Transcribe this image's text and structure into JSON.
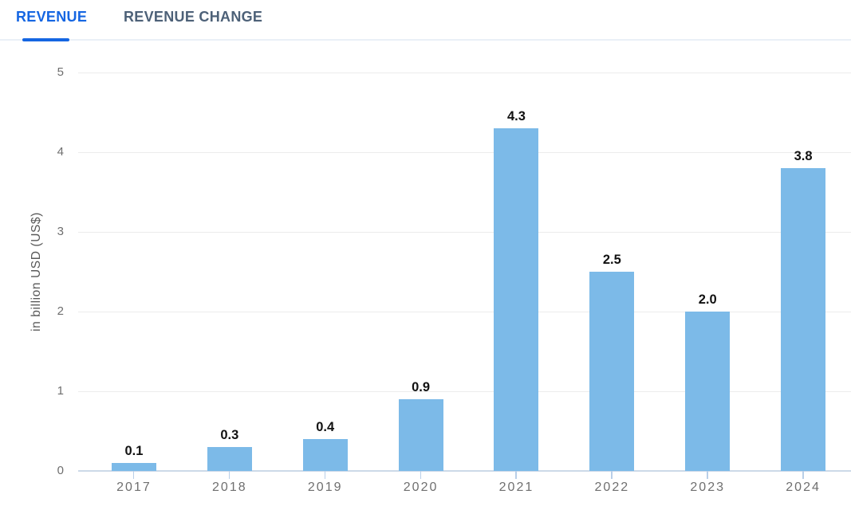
{
  "tabs": [
    {
      "label": "REVENUE",
      "active": true
    },
    {
      "label": "REVENUE CHANGE",
      "active": false
    }
  ],
  "colors": {
    "active_tab": "#1566e2",
    "inactive_tab": "#4d6178",
    "bar": "#7cbae8",
    "gridline": "#ececec",
    "baseline": "#ccd9e8",
    "xtick": "#b9cfe8",
    "axis_text": "#6e6e6e",
    "value_label": "#111111"
  },
  "chart_data": {
    "type": "bar",
    "categories": [
      "2017",
      "2018",
      "2019",
      "2020",
      "2021",
      "2022",
      "2023",
      "2024"
    ],
    "values": [
      0.1,
      0.3,
      0.4,
      0.9,
      4.3,
      2.5,
      2.0,
      3.8
    ],
    "value_labels": [
      "0.1",
      "0.3",
      "0.4",
      "0.9",
      "4.3",
      "2.5",
      "2.0",
      "3.8"
    ],
    "title": "",
    "xlabel": "",
    "ylabel": "in billion USD (US$)",
    "yticks": [
      0,
      1,
      2,
      3,
      4,
      5
    ],
    "ylim": [
      0,
      5
    ],
    "grid": true,
    "legend": "none",
    "bar_color": "#7cbae8"
  }
}
